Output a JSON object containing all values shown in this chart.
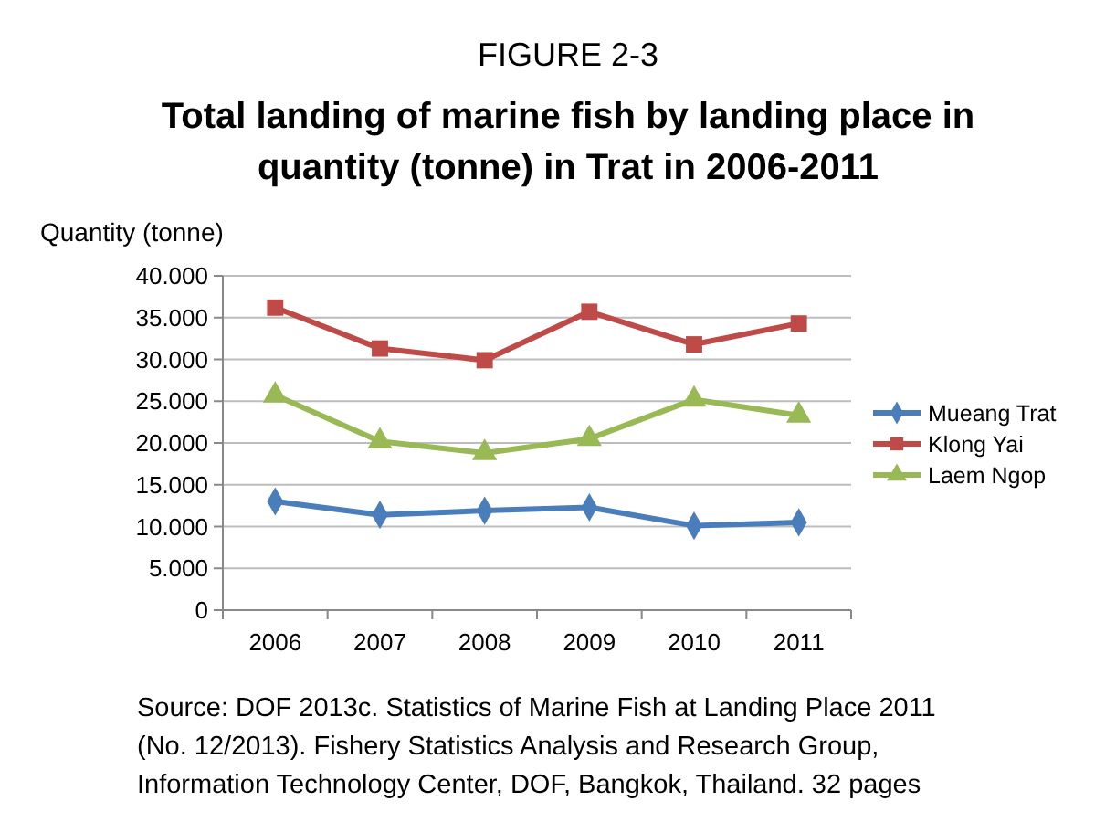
{
  "chart_data": {
    "type": "line",
    "title": "FIGURE 2-3",
    "subtitle": "Total landing of marine fish by landing place in quantity (tonne) in Trat in 2006-2011",
    "ylabel": "Quantity (tonne)",
    "categories": [
      "2006",
      "2007",
      "2008",
      "2009",
      "2010",
      "2011"
    ],
    "series": [
      {
        "name": "Mueang Trat",
        "color": "#4a7ebb",
        "marker": "diamond",
        "values": [
          13000,
          11400,
          11900,
          12300,
          10100,
          10500
        ]
      },
      {
        "name": "Klong Yai",
        "color": "#be4b48",
        "marker": "square",
        "values": [
          36200,
          31300,
          29900,
          35700,
          31800,
          34300
        ]
      },
      {
        "name": "Laem Ngop",
        "color": "#98b954",
        "marker": "triangle",
        "values": [
          25700,
          20200,
          18800,
          20500,
          25200,
          23300
        ]
      }
    ],
    "ylim": [
      0,
      40000
    ],
    "yticks": [
      0,
      {
        "value": 5000,
        "label": "5.000"
      },
      {
        "value": 10000,
        "label": "10.000"
      },
      {
        "value": 15000,
        "label": "15.000"
      },
      {
        "value": 20000,
        "label": "20.000"
      },
      {
        "value": 25000,
        "label": "25.000"
      },
      {
        "value": 30000,
        "label": "30.000"
      },
      {
        "value": 35000,
        "label": "35.000"
      },
      {
        "value": 40000,
        "label": "40.000"
      }
    ],
    "grid": "y",
    "legend": "right",
    "annotations": [
      "Source: DOF 2013c. Statistics of Marine Fish at Landing Place 2011",
      "(No. 12/2013). Fishery Statistics Analysis and Research Group,",
      "Information Technology Center, DOF, Bangkok, Thailand. 32 pages"
    ]
  }
}
